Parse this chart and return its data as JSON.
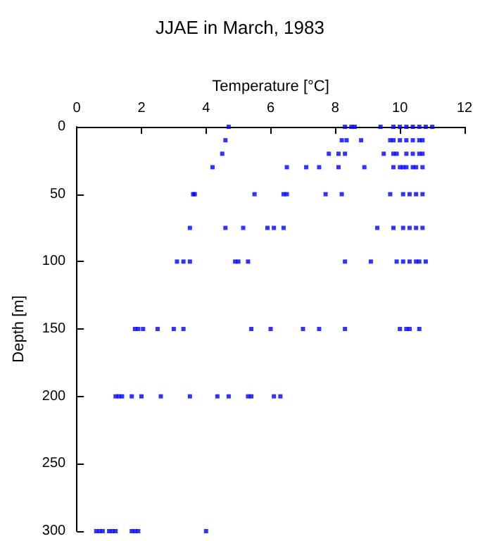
{
  "chart_data": {
    "type": "scatter",
    "title": "JJAE in March, 1983",
    "xlabel": "Temperature [°C]",
    "ylabel": "Depth [m]",
    "xlim": [
      0,
      12
    ],
    "xticks": [
      0,
      2,
      4,
      6,
      8,
      10,
      12
    ],
    "ylim": [
      300,
      0
    ],
    "yticks": [
      0,
      50,
      100,
      150,
      200,
      250,
      300
    ],
    "grid": false,
    "marker": "square",
    "series": [
      {
        "color": "#0000ff",
        "x": [
          4.7,
          8.3,
          8.5,
          8.6,
          9.4,
          9.8,
          10.0,
          10.2,
          10.4,
          10.6,
          10.8,
          11.0,
          4.6,
          8.2,
          8.35,
          8.8,
          9.7,
          9.8,
          10.0,
          10.2,
          10.4,
          10.6,
          10.7,
          4.5,
          7.8,
          8.1,
          8.3,
          9.5,
          9.8,
          9.9,
          10.2,
          10.4,
          10.6,
          10.7,
          4.2,
          6.5,
          7.1,
          7.5,
          8.1,
          8.9,
          9.8,
          10.0,
          10.1,
          10.2,
          10.4,
          10.5,
          10.7,
          3.6,
          3.65,
          5.5,
          6.4,
          6.5,
          7.7,
          8.2,
          9.7,
          10.1,
          10.3,
          10.5,
          10.7,
          3.5,
          4.6,
          5.15,
          5.9,
          6.1,
          6.4,
          9.3,
          9.8,
          10.1,
          10.3,
          10.5,
          10.7,
          3.1,
          3.3,
          3.5,
          4.9,
          5.0,
          5.3,
          8.3,
          9.1,
          9.9,
          10.1,
          10.3,
          10.5,
          10.6,
          10.8,
          1.8,
          1.9,
          2.05,
          2.5,
          3.0,
          3.3,
          5.4,
          6.0,
          7.0,
          7.5,
          8.3,
          10.0,
          10.2,
          10.3,
          10.6,
          1.2,
          1.3,
          1.4,
          1.7,
          2.0,
          2.6,
          3.5,
          4.35,
          4.7,
          5.3,
          5.4,
          6.1,
          6.3,
          0.6,
          0.7,
          0.8,
          1.0,
          1.1,
          1.2,
          1.7,
          1.8,
          1.9,
          4.0
        ],
        "values": [
          0,
          0,
          0,
          0,
          0,
          0,
          0,
          0,
          0,
          0,
          0,
          0,
          10,
          10,
          10,
          10,
          10,
          10,
          10,
          10,
          10,
          10,
          10,
          20,
          20,
          20,
          20,
          20,
          20,
          20,
          20,
          20,
          20,
          20,
          30,
          30,
          30,
          30,
          30,
          30,
          30,
          30,
          30,
          30,
          30,
          30,
          30,
          50,
          50,
          50,
          50,
          50,
          50,
          50,
          50,
          50,
          50,
          50,
          50,
          75,
          75,
          75,
          75,
          75,
          75,
          75,
          75,
          75,
          75,
          75,
          75,
          100,
          100,
          100,
          100,
          100,
          100,
          100,
          100,
          100,
          100,
          100,
          100,
          100,
          100,
          150,
          150,
          150,
          150,
          150,
          150,
          150,
          150,
          150,
          150,
          150,
          150,
          150,
          150,
          150,
          200,
          200,
          200,
          200,
          200,
          200,
          200,
          200,
          200,
          200,
          200,
          200,
          200,
          300,
          300,
          300,
          300,
          300,
          300,
          300,
          300,
          300,
          300
        ]
      }
    ]
  }
}
